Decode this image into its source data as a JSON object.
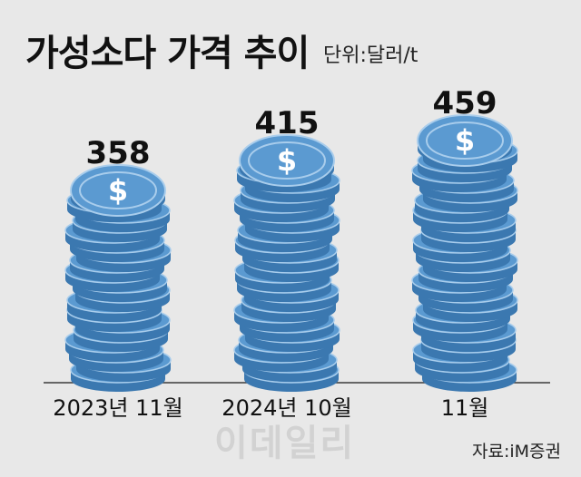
{
  "chart_data": {
    "type": "bar",
    "title": "가성소다 가격 추이",
    "unit_label": "단위:달러/t",
    "categories": [
      "2023년 11월",
      "2024년 10월",
      "11월"
    ],
    "values": [
      358,
      415,
      459
    ],
    "value_labels": [
      "358",
      "415",
      "459"
    ],
    "colors": {
      "coin_face": "#5b9ad1",
      "coin_edge": "#3b78b0",
      "coin_rim_light": "#a9cdec",
      "dollar": "#ffffff",
      "baseline": "#3a3a3a",
      "background": "#e8e8e8"
    },
    "icon": "dollar-coin-stack-icon",
    "source": "자료:iM증권",
    "watermark": "이데일리"
  }
}
